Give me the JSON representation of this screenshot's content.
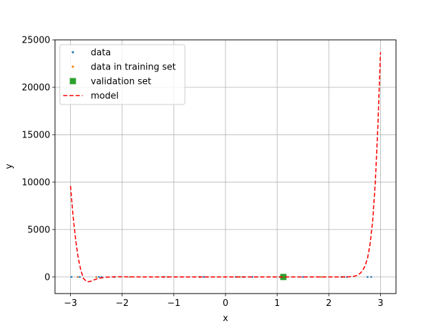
{
  "chart_data": {
    "type": "scatter",
    "xlabel": "x",
    "ylabel": "y",
    "xlim": [
      -3.3,
      3.3
    ],
    "ylim": [
      -1750,
      25000
    ],
    "x_ticks": [
      -3,
      -2,
      -1,
      0,
      1,
      2,
      3
    ],
    "y_ticks": [
      0,
      5000,
      10000,
      15000,
      20000,
      25000
    ],
    "grid": true,
    "legend_position": "top-left",
    "legend": [
      {
        "label": "data",
        "marker": "dot",
        "color": "#1f77b4"
      },
      {
        "label": "data in training set",
        "marker": "dot",
        "color": "#ff7f0e"
      },
      {
        "label": "validation set",
        "marker": "square",
        "color": "#2ca02c"
      },
      {
        "label": "model",
        "marker": "dashed-line",
        "color": "#ff0000"
      }
    ],
    "series": [
      {
        "name": "data",
        "color": "#1f77b4",
        "x": [
          -2.98,
          -2.86,
          -2.82,
          -2.5,
          -2.45,
          -2.4,
          -2.15,
          -1.85,
          -1.2,
          -1.12,
          -0.5,
          -0.42,
          0.2,
          0.28,
          0.35,
          0.52,
          1.05,
          1.12,
          1.5,
          1.85,
          2.25,
          2.3,
          2.35,
          2.75,
          2.82
        ],
        "y": [
          0,
          0,
          0,
          0,
          0,
          0,
          0,
          0,
          0,
          0,
          0,
          0,
          0,
          0,
          0,
          0,
          0,
          0,
          0,
          0,
          0,
          0,
          0,
          0,
          0
        ]
      },
      {
        "name": "data in training set",
        "color": "#ff7f0e",
        "x": [
          -2.86,
          -2.5,
          -1.85,
          -1.12,
          -0.5,
          0.28,
          1.05,
          1.85,
          2.3
        ],
        "y": [
          0,
          0,
          0,
          0,
          0,
          0,
          0,
          0,
          0
        ]
      },
      {
        "name": "validation set",
        "color": "#2ca02c",
        "x": [
          1.12
        ],
        "y": [
          0
        ]
      },
      {
        "name": "model",
        "color": "#ff0000",
        "x": [
          -3.0,
          -2.95,
          -2.9,
          -2.85,
          -2.8,
          -2.75,
          -2.7,
          -2.65,
          -2.6,
          -2.55,
          -2.5,
          -2.4,
          -2.3,
          -2.2,
          -2.1,
          -2.0,
          -1.5,
          -1.0,
          -0.5,
          0.0,
          0.5,
          1.0,
          1.5,
          2.0,
          2.2,
          2.4,
          2.5,
          2.55,
          2.6,
          2.65,
          2.7,
          2.75,
          2.8,
          2.85,
          2.9,
          2.95,
          3.0
        ],
        "y": [
          9600,
          6400,
          3900,
          2000,
          700,
          -150,
          -420,
          -500,
          -440,
          -320,
          -220,
          -90,
          -20,
          0,
          20,
          20,
          0,
          0,
          0,
          0,
          0,
          0,
          0,
          0,
          0,
          20,
          90,
          180,
          350,
          650,
          1150,
          2000,
          3500,
          6000,
          10000,
          16000,
          23700
        ]
      }
    ]
  }
}
